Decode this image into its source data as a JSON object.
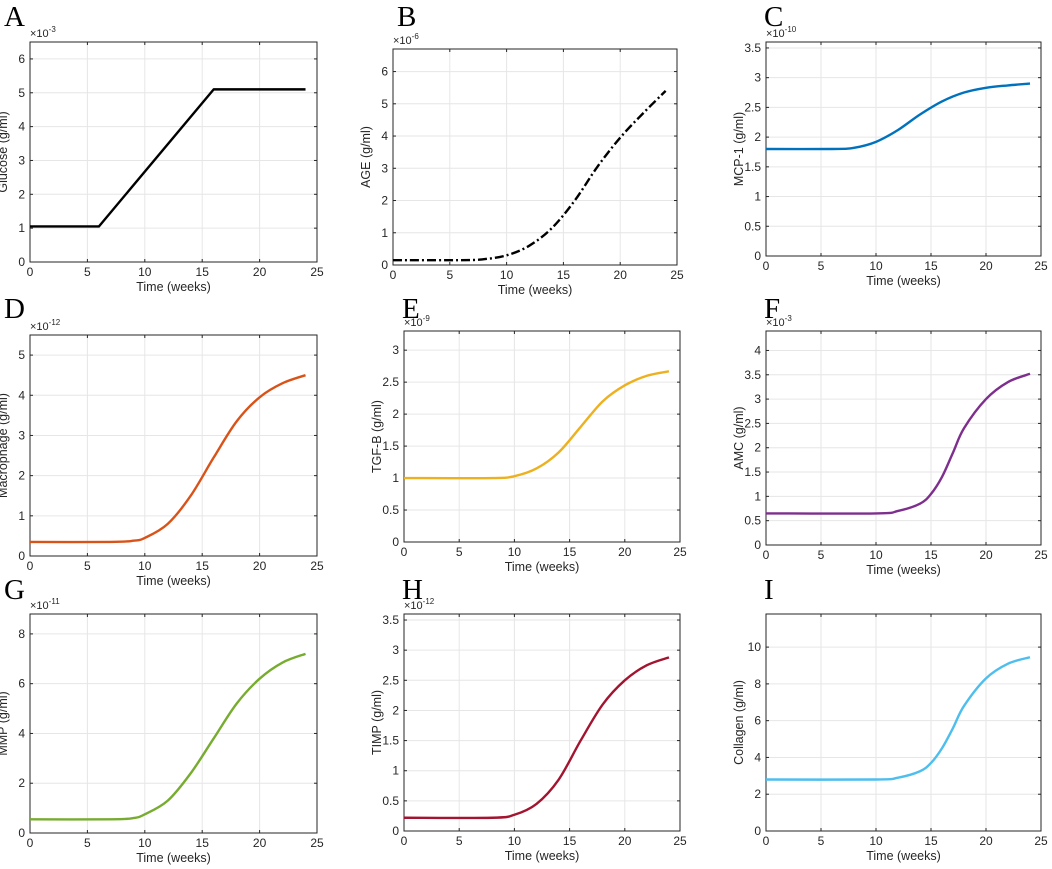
{
  "chart_data": [
    {
      "panel": "A",
      "type": "line",
      "ylabel": "Glucose (g/ml)",
      "xlabel": "Time (weeks)",
      "exponent": "-3",
      "xlim": [
        0,
        25
      ],
      "ylim": [
        0,
        6.5
      ],
      "xticks": [
        0,
        5,
        10,
        15,
        20,
        25
      ],
      "xtick_labels": [
        "0",
        "5",
        "10",
        "15",
        "20",
        "25"
      ],
      "yticks": [
        0,
        1,
        2,
        3,
        4,
        5,
        6
      ],
      "ytick_labels": [
        "0",
        "1",
        "2",
        "3",
        "4",
        "5",
        "6"
      ],
      "color": "#000000",
      "dash": "",
      "series": [
        {
          "name": "Glucose",
          "x": [
            0,
            6,
            16,
            24
          ],
          "y": [
            1.05,
            1.05,
            5.1,
            5.1
          ]
        }
      ]
    },
    {
      "panel": "B",
      "type": "line",
      "ylabel": "AGE (g/ml)",
      "xlabel": "Time (weeks)",
      "exponent": "-6",
      "xlim": [
        0,
        25
      ],
      "ylim": [
        0,
        6.7
      ],
      "xticks": [
        0,
        5,
        10,
        15,
        20,
        25
      ],
      "xtick_labels": [
        "0",
        "5",
        "10",
        "15",
        "20",
        "25"
      ],
      "yticks": [
        0,
        1,
        2,
        3,
        4,
        5,
        6
      ],
      "ytick_labels": [
        "0",
        "1",
        "2",
        "3",
        "4",
        "5",
        "6"
      ],
      "color": "#000000",
      "dash": "9 3 2 3",
      "series": [
        {
          "name": "AGE",
          "x": [
            0,
            6,
            8,
            10,
            12,
            14,
            16,
            18,
            20,
            22,
            24
          ],
          "y": [
            0.15,
            0.15,
            0.18,
            0.3,
            0.6,
            1.15,
            2.0,
            3.05,
            3.95,
            4.7,
            5.4
          ]
        }
      ]
    },
    {
      "panel": "C",
      "type": "line",
      "ylabel": "MCP-1 (g/ml)",
      "xlabel": "Time (weeks)",
      "exponent": "-10",
      "xlim": [
        0,
        25
      ],
      "ylim": [
        0,
        3.6
      ],
      "xticks": [
        0,
        5,
        10,
        15,
        20,
        25
      ],
      "xtick_labels": [
        "0",
        "5",
        "10",
        "15",
        "20",
        "25"
      ],
      "yticks": [
        0,
        0.5,
        1,
        1.5,
        2,
        2.5,
        3,
        3.5
      ],
      "ytick_labels": [
        "0",
        "0.5",
        "1",
        "1.5",
        "2",
        "2.5",
        "3",
        "3.5"
      ],
      "color": "#0072BD",
      "dash": "",
      "series": [
        {
          "name": "MCP-1",
          "x": [
            0,
            6,
            8,
            10,
            12,
            14,
            16,
            18,
            20,
            22,
            24
          ],
          "y": [
            1.8,
            1.8,
            1.82,
            1.92,
            2.12,
            2.38,
            2.6,
            2.75,
            2.83,
            2.87,
            2.9
          ]
        }
      ]
    },
    {
      "panel": "D",
      "type": "line",
      "ylabel": "Macrophage (g/ml)",
      "xlabel": "Time (weeks)",
      "exponent": "-12",
      "xlim": [
        0,
        25
      ],
      "ylim": [
        0,
        5.5
      ],
      "xticks": [
        0,
        5,
        10,
        15,
        20,
        25
      ],
      "xtick_labels": [
        "0",
        "5",
        "10",
        "15",
        "20",
        "25"
      ],
      "yticks": [
        0,
        1,
        2,
        3,
        4,
        5
      ],
      "ytick_labels": [
        "0",
        "1",
        "2",
        "3",
        "4",
        "5"
      ],
      "color": "#D95319",
      "dash": "",
      "series": [
        {
          "name": "Macrophage",
          "x": [
            0,
            7,
            9,
            10,
            12,
            14,
            16,
            18,
            20,
            22,
            24
          ],
          "y": [
            0.35,
            0.35,
            0.38,
            0.45,
            0.8,
            1.5,
            2.45,
            3.35,
            3.95,
            4.3,
            4.5
          ]
        }
      ]
    },
    {
      "panel": "E",
      "type": "line",
      "ylabel": "TGF-B (g/ml)",
      "xlabel": "Time (weeks)",
      "exponent": "-9",
      "xlim": [
        0,
        25
      ],
      "ylim": [
        0,
        3.3
      ],
      "xticks": [
        0,
        5,
        10,
        15,
        20,
        25
      ],
      "xtick_labels": [
        "0",
        "5",
        "10",
        "15",
        "20",
        "25"
      ],
      "yticks": [
        0,
        0.5,
        1,
        1.5,
        2,
        2.5,
        3
      ],
      "ytick_labels": [
        "0",
        "0.5",
        "1",
        "1.5",
        "2",
        "2.5",
        "3"
      ],
      "color": "#EDB120",
      "dash": "",
      "series": [
        {
          "name": "TGF-B",
          "x": [
            0,
            8,
            10,
            12,
            14,
            16,
            18,
            20,
            22,
            24
          ],
          "y": [
            1.0,
            1.0,
            1.03,
            1.15,
            1.4,
            1.8,
            2.2,
            2.45,
            2.6,
            2.67
          ]
        }
      ]
    },
    {
      "panel": "F",
      "type": "line",
      "ylabel": "AMC (g/ml)",
      "xlabel": "Time (weeks)",
      "exponent": "-3",
      "xlim": [
        0,
        25
      ],
      "ylim": [
        0,
        4.4
      ],
      "xticks": [
        0,
        5,
        10,
        15,
        20,
        25
      ],
      "xtick_labels": [
        "0",
        "5",
        "10",
        "15",
        "20",
        "25"
      ],
      "yticks": [
        0,
        0.5,
        1,
        1.5,
        2,
        2.5,
        3,
        3.5,
        4
      ],
      "ytick_labels": [
        "0",
        "0.5",
        "1",
        "1.5",
        "2",
        "2.5",
        "3",
        "3.5",
        "4"
      ],
      "color": "#7E2F8E",
      "dash": "",
      "series": [
        {
          "name": "AMC",
          "x": [
            0,
            10,
            12,
            14,
            15,
            16,
            17,
            18,
            20,
            22,
            24
          ],
          "y": [
            0.65,
            0.65,
            0.7,
            0.85,
            1.05,
            1.4,
            1.9,
            2.4,
            3.0,
            3.35,
            3.52
          ]
        }
      ]
    },
    {
      "panel": "G",
      "type": "line",
      "ylabel": "MMP (g/ml)",
      "xlabel": "Time (weeks)",
      "exponent": "-11",
      "xlim": [
        0,
        25
      ],
      "ylim": [
        0,
        8.8
      ],
      "xticks": [
        0,
        5,
        10,
        15,
        20,
        25
      ],
      "xtick_labels": [
        "0",
        "5",
        "10",
        "15",
        "20",
        "25"
      ],
      "yticks": [
        0,
        2,
        4,
        6,
        8
      ],
      "ytick_labels": [
        "0",
        "2",
        "4",
        "6",
        "8"
      ],
      "color": "#77AC30",
      "dash": "",
      "series": [
        {
          "name": "MMP",
          "x": [
            0,
            7,
            9,
            10,
            12,
            14,
            16,
            18,
            20,
            22,
            24
          ],
          "y": [
            0.55,
            0.55,
            0.6,
            0.75,
            1.3,
            2.4,
            3.8,
            5.2,
            6.2,
            6.85,
            7.2
          ]
        }
      ]
    },
    {
      "panel": "H",
      "type": "line",
      "ylabel": "TIMP (g/ml)",
      "xlabel": "Time (weeks)",
      "exponent": "-12",
      "xlim": [
        0,
        25
      ],
      "ylim": [
        0,
        3.6
      ],
      "xticks": [
        0,
        5,
        10,
        15,
        20,
        25
      ],
      "xtick_labels": [
        "0",
        "5",
        "10",
        "15",
        "20",
        "25"
      ],
      "yticks": [
        0,
        0.5,
        1,
        1.5,
        2,
        2.5,
        3,
        3.5
      ],
      "ytick_labels": [
        "0",
        "0.5",
        "1",
        "1.5",
        "2",
        "2.5",
        "3",
        "3.5"
      ],
      "color": "#A2142F",
      "dash": "",
      "series": [
        {
          "name": "TIMP",
          "x": [
            0,
            8,
            10,
            12,
            14,
            16,
            18,
            20,
            22,
            24
          ],
          "y": [
            0.22,
            0.22,
            0.27,
            0.45,
            0.85,
            1.5,
            2.1,
            2.5,
            2.75,
            2.88
          ]
        }
      ]
    },
    {
      "panel": "I",
      "type": "line",
      "ylabel": "Collagen (g/ml)",
      "xlabel": "Time (weeks)",
      "exponent": "",
      "xlim": [
        0,
        25
      ],
      "ylim": [
        0,
        11.8
      ],
      "xticks": [
        0,
        5,
        10,
        15,
        20,
        25
      ],
      "xtick_labels": [
        "0",
        "5",
        "10",
        "15",
        "20",
        "25"
      ],
      "yticks": [
        0,
        2,
        4,
        6,
        8,
        10
      ],
      "ytick_labels": [
        "0",
        "2",
        "4",
        "6",
        "8",
        "10"
      ],
      "color": "#4DBEEE",
      "dash": "",
      "series": [
        {
          "name": "Collagen",
          "x": [
            0,
            10,
            12,
            14,
            15,
            16,
            17,
            18,
            20,
            22,
            24
          ],
          "y": [
            2.8,
            2.8,
            2.9,
            3.25,
            3.7,
            4.5,
            5.6,
            6.8,
            8.3,
            9.1,
            9.45
          ]
        }
      ]
    }
  ]
}
